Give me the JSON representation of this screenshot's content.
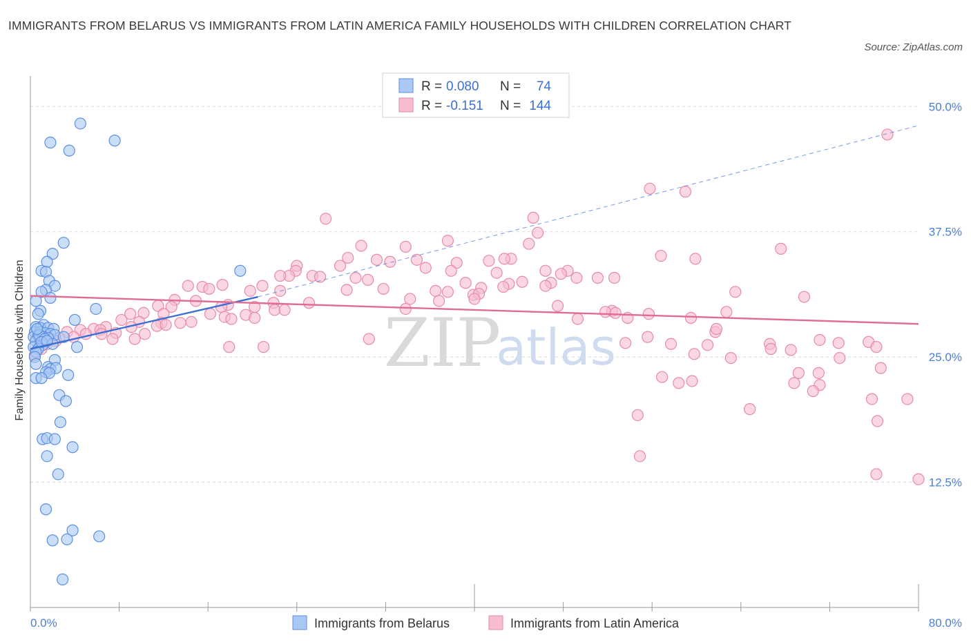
{
  "header": {
    "title": "IMMIGRANTS FROM BELARUS VS IMMIGRANTS FROM LATIN AMERICA FAMILY HOUSEHOLDS WITH CHILDREN CORRELATION CHART",
    "source": "Source: ZipAtlas.com"
  },
  "watermark": {
    "zip": "ZIP",
    "atlas": "atlas"
  },
  "legend": {
    "r_label": "R =",
    "n_label": "N =",
    "entries": [
      {
        "r": "0.080",
        "n": "74",
        "color": "#a9c8f3",
        "border": "#5b8fe0"
      },
      {
        "r": "-0.151",
        "n": "144",
        "color": "#f7bcd0",
        "border": "#e68aa9"
      }
    ]
  },
  "colors": {
    "belarus_fill": "#a9c8f3",
    "belarus_stroke": "#5b8fe0",
    "belarus_line": "#3b6fd1",
    "latam_fill": "#f7bcd0",
    "latam_stroke": "#e68aa9",
    "latam_line": "#e06c95",
    "grid": "#d9d9d9",
    "tick_text": "#4a7fd4"
  },
  "chart_data": {
    "type": "scatter",
    "title": "IMMIGRANTS FROM BELARUS VS IMMIGRANTS FROM LATIN AMERICA FAMILY HOUSEHOLDS WITH CHILDREN CORRELATION CHART",
    "xlabel": "",
    "ylabel": "Family Households with Children",
    "xlim": [
      0,
      80
    ],
    "ylim": [
      0,
      52.5
    ],
    "x_tick_labels": [
      "0.0%",
      "80.0%"
    ],
    "y_ticks": [
      12.5,
      25.0,
      37.5,
      50.0
    ],
    "y_tick_labels": [
      "12.5%",
      "25.0%",
      "37.5%",
      "50.0%"
    ],
    "legend_position": "top-center",
    "series": [
      {
        "name": "Immigrants from Belarus",
        "R": 0.08,
        "N": 74,
        "trend": {
          "x": [
            0,
            20.5
          ],
          "y": [
            25.8,
            31.0
          ],
          "dashed_extension_to": [
            80,
            48.1
          ]
        },
        "points": [
          [
            4.5,
            48.3
          ],
          [
            1.8,
            46.4
          ],
          [
            3.5,
            45.6
          ],
          [
            7.6,
            46.6
          ],
          [
            3.0,
            36.4
          ],
          [
            2.0,
            35.3
          ],
          [
            1.5,
            34.5
          ],
          [
            1.0,
            33.6
          ],
          [
            1.4,
            33.5
          ],
          [
            18.9,
            33.6
          ],
          [
            1.7,
            32.6
          ],
          [
            2.2,
            32.1
          ],
          [
            1.4,
            31.7
          ],
          [
            1.0,
            31.5
          ],
          [
            1.8,
            30.9
          ],
          [
            0.5,
            30.6
          ],
          [
            5.9,
            29.8
          ],
          [
            0.9,
            29.6
          ],
          [
            0.7,
            29.3
          ],
          [
            4.0,
            28.7
          ],
          [
            1.2,
            28.2
          ],
          [
            0.5,
            28.0
          ],
          [
            0.9,
            27.9
          ],
          [
            1.6,
            27.9
          ],
          [
            2.1,
            27.8
          ],
          [
            0.4,
            27.5
          ],
          [
            0.9,
            27.5
          ],
          [
            1.3,
            27.4
          ],
          [
            1.8,
            27.3
          ],
          [
            2.2,
            27.2
          ],
          [
            0.3,
            27.0
          ],
          [
            0.7,
            27.1
          ],
          [
            1.2,
            27.0
          ],
          [
            1.6,
            26.9
          ],
          [
            3.0,
            27.0
          ],
          [
            0.5,
            26.6
          ],
          [
            0.9,
            26.4
          ],
          [
            1.1,
            26.2
          ],
          [
            0.3,
            26.0
          ],
          [
            0.7,
            25.8
          ],
          [
            4.2,
            26.0
          ],
          [
            0.5,
            25.5
          ],
          [
            0.4,
            25.0
          ],
          [
            2.2,
            24.7
          ],
          [
            0.5,
            24.3
          ],
          [
            1.6,
            24.0
          ],
          [
            1.8,
            23.8
          ],
          [
            2.3,
            23.9
          ],
          [
            1.4,
            23.5
          ],
          [
            1.7,
            23.4
          ],
          [
            3.4,
            23.2
          ],
          [
            0.5,
            22.9
          ],
          [
            1.0,
            22.9
          ],
          [
            2.6,
            21.2
          ],
          [
            3.2,
            20.6
          ],
          [
            2.7,
            18.5
          ],
          [
            1.1,
            16.8
          ],
          [
            1.5,
            16.9
          ],
          [
            2.2,
            16.8
          ],
          [
            3.8,
            16.0
          ],
          [
            1.5,
            15.1
          ],
          [
            2.5,
            13.3
          ],
          [
            1.4,
            9.8
          ],
          [
            3.8,
            7.7
          ],
          [
            2.0,
            6.7
          ],
          [
            3.3,
            6.8
          ],
          [
            6.2,
            7.1
          ],
          [
            2.9,
            2.8
          ],
          [
            0.8,
            27.2
          ],
          [
            1.3,
            26.8
          ],
          [
            0.6,
            27.8
          ],
          [
            2.0,
            26.3
          ],
          [
            1.0,
            26.5
          ],
          [
            1.5,
            26.6
          ]
        ]
      },
      {
        "name": "Immigrants from Latin America",
        "R": -0.151,
        "N": 144,
        "trend": {
          "x": [
            0,
            80
          ],
          "y": [
            31.1,
            28.3
          ]
        },
        "points": [
          [
            77.2,
            47.2
          ],
          [
            55.8,
            41.8
          ],
          [
            59.0,
            41.5
          ],
          [
            26.6,
            38.8
          ],
          [
            45.3,
            38.9
          ],
          [
            45.7,
            37.4
          ],
          [
            37.6,
            36.6
          ],
          [
            44.9,
            36.3
          ],
          [
            29.8,
            36.1
          ],
          [
            33.8,
            36.0
          ],
          [
            67.6,
            35.8
          ],
          [
            56.8,
            35.1
          ],
          [
            59.9,
            34.8
          ],
          [
            28.6,
            34.9
          ],
          [
            31.2,
            34.7
          ],
          [
            32.4,
            34.5
          ],
          [
            34.8,
            34.7
          ],
          [
            38.4,
            34.4
          ],
          [
            43.3,
            34.8
          ],
          [
            42.7,
            34.8
          ],
          [
            41.3,
            34.6
          ],
          [
            24.0,
            34.1
          ],
          [
            27.9,
            34.1
          ],
          [
            23.9,
            33.6
          ],
          [
            35.6,
            33.9
          ],
          [
            48.4,
            33.6
          ],
          [
            23.3,
            33.1
          ],
          [
            22.5,
            33.1
          ],
          [
            25.4,
            33.1
          ],
          [
            26.1,
            33.0
          ],
          [
            29.3,
            32.9
          ],
          [
            37.9,
            33.6
          ],
          [
            42.0,
            33.4
          ],
          [
            46.4,
            33.6
          ],
          [
            47.8,
            33.3
          ],
          [
            49.2,
            32.9
          ],
          [
            51.1,
            32.9
          ],
          [
            52.6,
            32.9
          ],
          [
            30.4,
            32.7
          ],
          [
            46.9,
            32.4
          ],
          [
            46.4,
            32.1
          ],
          [
            39.2,
            32.4
          ],
          [
            40.6,
            31.9
          ],
          [
            43.1,
            32.3
          ],
          [
            44.3,
            32.5
          ],
          [
            42.6,
            32.0
          ],
          [
            20.9,
            32.1
          ],
          [
            17.3,
            32.2
          ],
          [
            15.5,
            32.0
          ],
          [
            14.2,
            32.1
          ],
          [
            16.1,
            31.8
          ],
          [
            19.8,
            31.6
          ],
          [
            22.5,
            31.6
          ],
          [
            28.5,
            31.7
          ],
          [
            31.8,
            31.8
          ],
          [
            36.5,
            31.6
          ],
          [
            37.6,
            31.5
          ],
          [
            39.9,
            31.2
          ],
          [
            40.4,
            31.3
          ],
          [
            63.5,
            31.5
          ],
          [
            69.7,
            31.0
          ],
          [
            34.2,
            30.8
          ],
          [
            40.0,
            30.8
          ],
          [
            36.8,
            30.6
          ],
          [
            13.0,
            30.7
          ],
          [
            14.9,
            30.6
          ],
          [
            21.9,
            30.4
          ],
          [
            25.1,
            30.4
          ],
          [
            17.8,
            30.2
          ],
          [
            11.5,
            30.1
          ],
          [
            12.7,
            30.0
          ],
          [
            17.2,
            30.0
          ],
          [
            20.2,
            30.0
          ],
          [
            22.0,
            29.7
          ],
          [
            22.9,
            29.7
          ],
          [
            33.8,
            29.8
          ],
          [
            47.5,
            30.1
          ],
          [
            52.4,
            29.6
          ],
          [
            62.7,
            29.5
          ],
          [
            51.8,
            29.5
          ],
          [
            52.7,
            29.4
          ],
          [
            55.7,
            29.3
          ],
          [
            9.0,
            29.3
          ],
          [
            10.2,
            29.4
          ],
          [
            12.0,
            29.3
          ],
          [
            16.2,
            29.3
          ],
          [
            17.5,
            29.0
          ],
          [
            19.4,
            29.2
          ],
          [
            18.1,
            28.8
          ],
          [
            8.2,
            28.7
          ],
          [
            9.8,
            28.5
          ],
          [
            11.8,
            28.4
          ],
          [
            13.5,
            28.4
          ],
          [
            14.5,
            28.5
          ],
          [
            20.2,
            28.9
          ],
          [
            49.3,
            28.8
          ],
          [
            53.8,
            28.9
          ],
          [
            59.5,
            28.9
          ],
          [
            9.1,
            28.0
          ],
          [
            11.4,
            28.1
          ],
          [
            12.2,
            28.2
          ],
          [
            6.8,
            28.0
          ],
          [
            5.7,
            27.8
          ],
          [
            6.3,
            27.7
          ],
          [
            4.5,
            27.7
          ],
          [
            3.3,
            27.5
          ],
          [
            5.0,
            27.3
          ],
          [
            6.4,
            27.3
          ],
          [
            7.7,
            27.4
          ],
          [
            10.3,
            27.3
          ],
          [
            3.9,
            27.0
          ],
          [
            2.6,
            26.9
          ],
          [
            7.4,
            26.8
          ],
          [
            9.4,
            26.8
          ],
          [
            2.3,
            26.6
          ],
          [
            1.5,
            26.3
          ],
          [
            1.0,
            25.8
          ],
          [
            0.4,
            25.2
          ],
          [
            30.5,
            26.8
          ],
          [
            55.6,
            27.0
          ],
          [
            61.7,
            27.5
          ],
          [
            61.8,
            27.8
          ],
          [
            66.6,
            26.3
          ],
          [
            72.8,
            26.4
          ],
          [
            75.5,
            26.5
          ],
          [
            76.2,
            26.0
          ],
          [
            53.6,
            26.4
          ],
          [
            57.7,
            26.3
          ],
          [
            61.0,
            26.2
          ],
          [
            66.7,
            25.8
          ],
          [
            68.5,
            25.7
          ],
          [
            71.1,
            26.7
          ],
          [
            17.9,
            26.0
          ],
          [
            21.0,
            26.0
          ],
          [
            59.8,
            25.3
          ],
          [
            63.1,
            24.9
          ],
          [
            72.9,
            24.9
          ],
          [
            76.6,
            23.9
          ],
          [
            69.2,
            23.4
          ],
          [
            71.0,
            23.4
          ],
          [
            56.9,
            23.0
          ],
          [
            58.4,
            22.4
          ],
          [
            59.6,
            22.6
          ],
          [
            68.8,
            22.4
          ],
          [
            71.1,
            22.2
          ],
          [
            70.5,
            21.6
          ],
          [
            75.8,
            20.8
          ],
          [
            79.0,
            20.8
          ],
          [
            64.8,
            19.8
          ],
          [
            54.7,
            19.2
          ],
          [
            76.3,
            18.6
          ],
          [
            54.9,
            15.1
          ],
          [
            76.2,
            13.3
          ],
          [
            81.3,
            12.8
          ]
        ]
      }
    ]
  },
  "bottom_legend": {
    "items": [
      {
        "label": "Immigrants from Belarus"
      },
      {
        "label": "Immigrants from Latin America"
      }
    ]
  }
}
